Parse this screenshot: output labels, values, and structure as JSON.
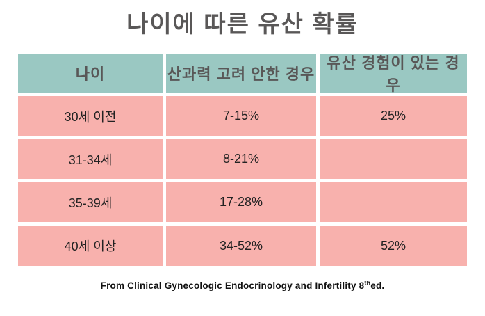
{
  "title": "나이에 따른 유산 확률",
  "colors": {
    "header_bg": "#9AC8C2",
    "row_bg": "#F8B1AD",
    "title_text": "#595757",
    "body_text": "#222222",
    "gap": "#FFFFFF"
  },
  "table": {
    "headers": [
      "나이",
      "산과력 고려 안한 경우",
      "유산 경험이 있는 경우"
    ],
    "rows": [
      {
        "age": "30세 이전",
        "no_history": "7-15%",
        "with_history": "25%"
      },
      {
        "age": "31-34세",
        "no_history": "8-21%",
        "with_history": ""
      },
      {
        "age": "35-39세",
        "no_history": "17-28%",
        "with_history": ""
      },
      {
        "age": "40세 이상",
        "no_history": "34-52%",
        "with_history": "52%"
      }
    ]
  },
  "footer": {
    "prefix": "From Clinical Gynecologic Endocrinology and Infertility 8",
    "superscript": "th",
    "suffix": "ed."
  },
  "chart_data": {
    "type": "table",
    "title": "나이에 따른 유산 확률",
    "columns": [
      "나이",
      "산과력 고려 안한 경우",
      "유산 경험이 있는 경우"
    ],
    "rows": [
      [
        "30세 이전",
        "7-15%",
        "25%"
      ],
      [
        "31-34세",
        "8-21%",
        ""
      ],
      [
        "35-39세",
        "17-28%",
        ""
      ],
      [
        "40세 이상",
        "34-52%",
        "52%"
      ]
    ],
    "source": "From Clinical Gynecologic Endocrinology and Infertility 8th ed.",
    "layout": {
      "header_position": "top",
      "grid": "white 5px gaps",
      "header_color": "#9AC8C2",
      "row_color": "#F8B1AD"
    }
  }
}
